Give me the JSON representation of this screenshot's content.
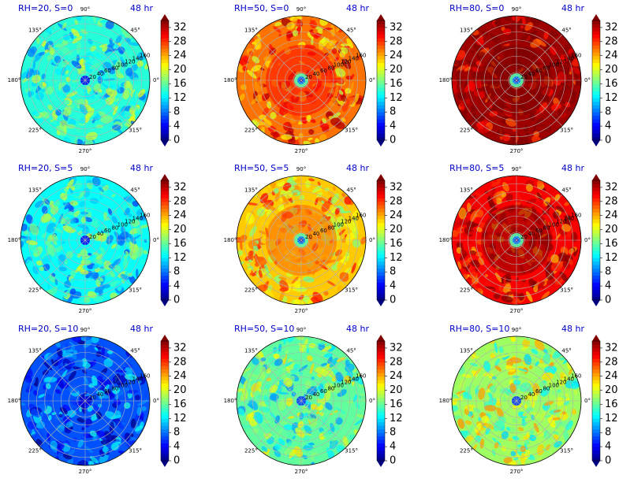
{
  "chart_data": [
    {
      "type": "heatmap",
      "title": "RH=20, S=0",
      "time_label": "48 hr",
      "rh": 20,
      "s": 0,
      "mean_level": 14,
      "core_level": 4,
      "core_type": "min"
    },
    {
      "type": "heatmap",
      "title": "RH=50, S=0",
      "time_label": "48 hr",
      "rh": 50,
      "s": 0,
      "mean_level": 26,
      "core_level": 10,
      "core_type": "eye"
    },
    {
      "type": "heatmap",
      "title": "RH=80, S=0",
      "time_label": "48 hr",
      "rh": 80,
      "s": 0,
      "mean_level": 33,
      "core_level": 10,
      "core_type": "eye"
    },
    {
      "type": "heatmap",
      "title": "RH=20, S=5",
      "time_label": "48 hr",
      "rh": 20,
      "s": 5,
      "mean_level": 13,
      "core_level": 4,
      "core_type": "min"
    },
    {
      "type": "heatmap",
      "title": "RH=50, S=5",
      "time_label": "48 hr",
      "rh": 50,
      "s": 5,
      "mean_level": 23,
      "core_level": 10,
      "core_type": "eye"
    },
    {
      "type": "heatmap",
      "title": "RH=80, S=5",
      "time_label": "48 hr",
      "rh": 80,
      "s": 5,
      "mean_level": 30,
      "core_level": 10,
      "core_type": "eye"
    },
    {
      "type": "heatmap",
      "title": "RH=20, S=10",
      "time_label": "48 hr",
      "rh": 20,
      "s": 10,
      "mean_level": 7,
      "core_level": 3,
      "core_type": "min"
    },
    {
      "type": "heatmap",
      "title": "RH=50, S=10",
      "time_label": "48 hr",
      "rh": 50,
      "s": 10,
      "mean_level": 16,
      "core_level": 6,
      "core_type": "min"
    },
    {
      "type": "heatmap",
      "title": "RH=80, S=10",
      "time_label": "48 hr",
      "rh": 80,
      "s": 10,
      "mean_level": 18,
      "core_level": 6,
      "core_type": "min"
    }
  ],
  "angle_labels": [
    "0°",
    "45°",
    "90°",
    "135°",
    "180°",
    "225°",
    "270°",
    "315°"
  ],
  "radial_ticks": [
    "20",
    "40",
    "60",
    "80",
    "100",
    "120",
    "140",
    "160"
  ],
  "colorbar": {
    "ticks": [
      "0",
      "4",
      "8",
      "12",
      "16",
      "20",
      "24",
      "28",
      "32"
    ],
    "range": [
      0,
      34
    ],
    "colormap": "jet"
  },
  "colors": {
    "title": "#0000cc",
    "grid": "#b0b0b0"
  }
}
